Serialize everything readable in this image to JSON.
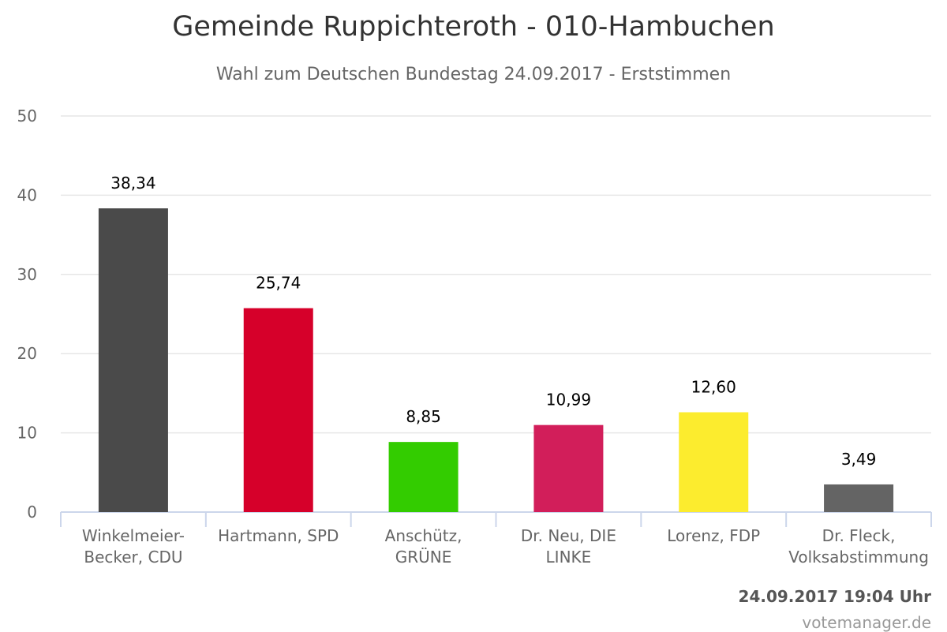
{
  "chart_data": {
    "type": "bar",
    "title": "Gemeinde Ruppichteroth - 010-Hambuchen",
    "subtitle": "Wahl zum Deutschen Bundestag 24.09.2017 - Erststimmen",
    "categories": [
      [
        "Winkelmeier-",
        "Becker, CDU"
      ],
      [
        "Hartmann, SPD"
      ],
      [
        "Anschütz,",
        "GRÜNE"
      ],
      [
        "Dr. Neu, DIE",
        "LINKE"
      ],
      [
        "Lorenz, FDP"
      ],
      [
        "Dr. Fleck,",
        "Volksabstimmung"
      ]
    ],
    "values": [
      38.34,
      25.74,
      8.85,
      10.99,
      12.6,
      3.49
    ],
    "value_labels": [
      "38,34",
      "25,74",
      "8,85",
      "10,99",
      "12,60",
      "3,49"
    ],
    "colors": [
      "#4a4a4a",
      "#d6002a",
      "#33cc00",
      "#d21e5a",
      "#fcec2e",
      "#646464"
    ],
    "ylim": [
      0,
      50
    ],
    "yticks": [
      0,
      10,
      20,
      30,
      40,
      50
    ],
    "grid": true,
    "legend": "none"
  },
  "footer": {
    "timestamp": "24.09.2017 19:04 Uhr",
    "credits": "votemanager.de"
  }
}
